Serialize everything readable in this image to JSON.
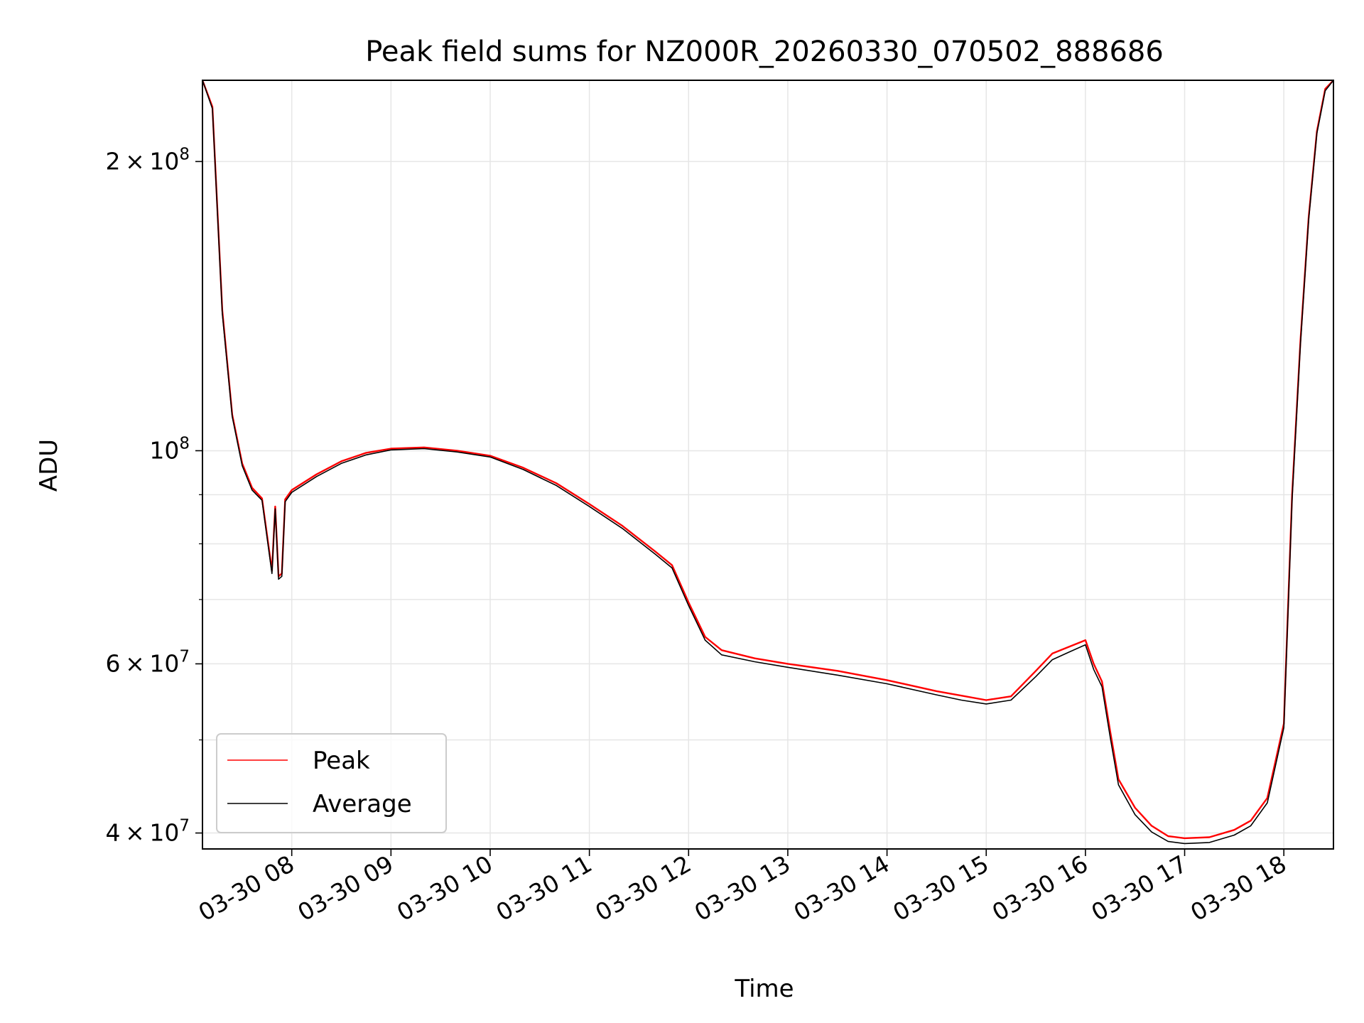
{
  "chart_data": {
    "type": "line",
    "title": "Peak field sums for NZ000R_20260330_070502_888686",
    "xlabel": "Time",
    "ylabel": "ADU",
    "y_scale": "log",
    "ylim": [
      38500000,
      243000000
    ],
    "xlim": [
      "2026-03-30 07:06",
      "2026-03-30 18:30"
    ],
    "grid": true,
    "legend_position": "lower-left",
    "x_ticks": [
      {
        "x": "2026-03-30 08:00",
        "label": "03-30 08"
      },
      {
        "x": "2026-03-30 09:00",
        "label": "03-30 09"
      },
      {
        "x": "2026-03-30 10:00",
        "label": "03-30 10"
      },
      {
        "x": "2026-03-30 11:00",
        "label": "03-30 11"
      },
      {
        "x": "2026-03-30 12:00",
        "label": "03-30 12"
      },
      {
        "x": "2026-03-30 13:00",
        "label": "03-30 13"
      },
      {
        "x": "2026-03-30 14:00",
        "label": "03-30 14"
      },
      {
        "x": "2026-03-30 15:00",
        "label": "03-30 15"
      },
      {
        "x": "2026-03-30 16:00",
        "label": "03-30 16"
      },
      {
        "x": "2026-03-30 17:00",
        "label": "03-30 17"
      },
      {
        "x": "2026-03-30 18:00",
        "label": "03-30 18"
      }
    ],
    "y_ticks_major": [
      {
        "value": 40000000,
        "mantissa": "4",
        "exponent": "7"
      },
      {
        "value": 60000000,
        "mantissa": "6",
        "exponent": "7"
      },
      {
        "value": 100000000,
        "mantissa": "",
        "exponent": "8"
      },
      {
        "value": 200000000,
        "mantissa": "2",
        "exponent": "8"
      }
    ],
    "y_ticks_minor": [
      50000000,
      70000000,
      80000000,
      90000000
    ],
    "series": [
      {
        "name": "Peak",
        "color": "#ff0000",
        "x": [
          "2026-03-30 07:06",
          "2026-03-30 07:12",
          "2026-03-30 07:18",
          "2026-03-30 07:24",
          "2026-03-30 07:30",
          "2026-03-30 07:36",
          "2026-03-30 07:42",
          "2026-03-30 07:48",
          "2026-03-30 07:50",
          "2026-03-30 07:52",
          "2026-03-30 07:54",
          "2026-03-30 07:56",
          "2026-03-30 08:00",
          "2026-03-30 08:15",
          "2026-03-30 08:30",
          "2026-03-30 08:45",
          "2026-03-30 09:00",
          "2026-03-30 09:20",
          "2026-03-30 09:40",
          "2026-03-30 10:00",
          "2026-03-30 10:20",
          "2026-03-30 10:40",
          "2026-03-30 11:00",
          "2026-03-30 11:20",
          "2026-03-30 11:40",
          "2026-03-30 11:50",
          "2026-03-30 12:00",
          "2026-03-30 12:10",
          "2026-03-30 12:20",
          "2026-03-30 12:40",
          "2026-03-30 13:00",
          "2026-03-30 13:30",
          "2026-03-30 14:00",
          "2026-03-30 14:30",
          "2026-03-30 14:45",
          "2026-03-30 15:00",
          "2026-03-30 15:15",
          "2026-03-30 15:30",
          "2026-03-30 15:40",
          "2026-03-30 15:50",
          "2026-03-30 16:00",
          "2026-03-30 16:05",
          "2026-03-30 16:10",
          "2026-03-30 16:15",
          "2026-03-30 16:20",
          "2026-03-30 16:30",
          "2026-03-30 16:40",
          "2026-03-30 16:50",
          "2026-03-30 17:00",
          "2026-03-30 17:15",
          "2026-03-30 17:30",
          "2026-03-30 17:40",
          "2026-03-30 17:50",
          "2026-03-30 18:00",
          "2026-03-30 18:05",
          "2026-03-30 18:10",
          "2026-03-30 18:15",
          "2026-03-30 18:20",
          "2026-03-30 18:25",
          "2026-03-30 18:30"
        ],
        "y": [
          243000000,
          228000000,
          140000000,
          109000000,
          97000000,
          91500000,
          89200000,
          75000000,
          87500000,
          74000000,
          74500000,
          89000000,
          91000000,
          94500000,
          97500000,
          99500000,
          100500000,
          100800000,
          100000000,
          98800000,
          96000000,
          92500000,
          88000000,
          83500000,
          78500000,
          76000000,
          69500000,
          64000000,
          62000000,
          60800000,
          60000000,
          59000000,
          57700000,
          56200000,
          55600000,
          55000000,
          55500000,
          59000000,
          61500000,
          62500000,
          63500000,
          60000000,
          57500000,
          51000000,
          45500000,
          42500000,
          40700000,
          39700000,
          39500000,
          39600000,
          40300000,
          41200000,
          43500000,
          52000000,
          90000000,
          130000000,
          175000000,
          215000000,
          238000000,
          243000000
        ]
      },
      {
        "name": "Average",
        "color": "#000000",
        "x": [
          "2026-03-30 07:06",
          "2026-03-30 07:12",
          "2026-03-30 07:18",
          "2026-03-30 07:24",
          "2026-03-30 07:30",
          "2026-03-30 07:36",
          "2026-03-30 07:42",
          "2026-03-30 07:48",
          "2026-03-30 07:50",
          "2026-03-30 07:52",
          "2026-03-30 07:54",
          "2026-03-30 07:56",
          "2026-03-30 08:00",
          "2026-03-30 08:15",
          "2026-03-30 08:30",
          "2026-03-30 08:45",
          "2026-03-30 09:00",
          "2026-03-30 09:20",
          "2026-03-30 09:40",
          "2026-03-30 10:00",
          "2026-03-30 10:20",
          "2026-03-30 10:40",
          "2026-03-30 11:00",
          "2026-03-30 11:20",
          "2026-03-30 11:40",
          "2026-03-30 11:50",
          "2026-03-30 12:00",
          "2026-03-30 12:10",
          "2026-03-30 12:20",
          "2026-03-30 12:40",
          "2026-03-30 13:00",
          "2026-03-30 13:30",
          "2026-03-30 14:00",
          "2026-03-30 14:30",
          "2026-03-30 14:45",
          "2026-03-30 15:00",
          "2026-03-30 15:15",
          "2026-03-30 15:30",
          "2026-03-30 15:40",
          "2026-03-30 15:50",
          "2026-03-30 16:00",
          "2026-03-30 16:05",
          "2026-03-30 16:10",
          "2026-03-30 16:15",
          "2026-03-30 16:20",
          "2026-03-30 16:30",
          "2026-03-30 16:40",
          "2026-03-30 16:50",
          "2026-03-30 17:00",
          "2026-03-30 17:15",
          "2026-03-30 17:30",
          "2026-03-30 17:40",
          "2026-03-30 17:50",
          "2026-03-30 18:00",
          "2026-03-30 18:05",
          "2026-03-30 18:10",
          "2026-03-30 18:15",
          "2026-03-30 18:20",
          "2026-03-30 18:25",
          "2026-03-30 18:30"
        ],
        "y": [
          243000000,
          227000000,
          139000000,
          108500000,
          96500000,
          91000000,
          88800000,
          74500000,
          87000000,
          73500000,
          74000000,
          88500000,
          90500000,
          94000000,
          97000000,
          99000000,
          100200000,
          100500000,
          99700000,
          98500000,
          95600000,
          92000000,
          87500000,
          83000000,
          78000000,
          75500000,
          69000000,
          63500000,
          61300000,
          60300000,
          59500000,
          58400000,
          57200000,
          55700000,
          55000000,
          54500000,
          55000000,
          58200000,
          60600000,
          61700000,
          62800000,
          59200000,
          56800000,
          50300000,
          44900000,
          41800000,
          40100000,
          39200000,
          39000000,
          39100000,
          39800000,
          40700000,
          43000000,
          51500000,
          89000000,
          129000000,
          174000000,
          214000000,
          237000000,
          243000000
        ]
      }
    ]
  }
}
